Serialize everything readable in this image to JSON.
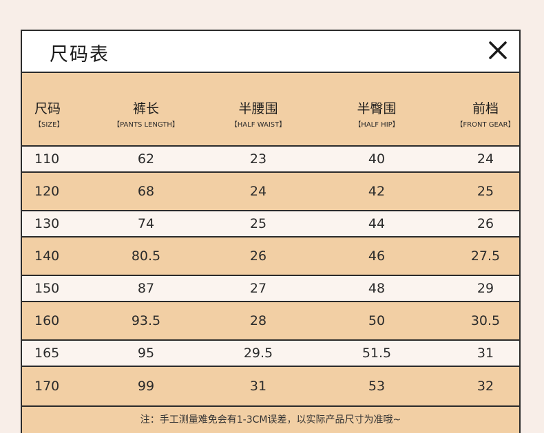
{
  "header": {
    "title": "尺码表",
    "close_icon": "close-icon"
  },
  "columns": [
    {
      "cn": "尺码",
      "en": "【SIZE】"
    },
    {
      "cn": "裤长",
      "en": "【PANTS LENGTH】"
    },
    {
      "cn": "半腰围",
      "en": "【HALF WAIST】"
    },
    {
      "cn": "半臀围",
      "en": "【HALF HIP】"
    },
    {
      "cn": "前档",
      "en": "【FRONT GEAR】"
    }
  ],
  "rows": [
    [
      "110",
      "62",
      "23",
      "40",
      "24"
    ],
    [
      "120",
      "68",
      "24",
      "42",
      "25"
    ],
    [
      "130",
      "74",
      "25",
      "44",
      "26"
    ],
    [
      "140",
      "80.5",
      "26",
      "46",
      "27.5"
    ],
    [
      "150",
      "87",
      "27",
      "48",
      "29"
    ],
    [
      "160",
      "93.5",
      "28",
      "50",
      "30.5"
    ],
    [
      "165",
      "95",
      "29.5",
      "51.5",
      "31"
    ],
    [
      "170",
      "99",
      "31",
      "53",
      "32"
    ]
  ],
  "note": "注：手工测量难免会有1-3CM误差，以实际产品尺寸为准哦~",
  "colors": {
    "band": "#f2cfa4",
    "light": "#fbf4ef",
    "border": "#2b2b2b"
  }
}
